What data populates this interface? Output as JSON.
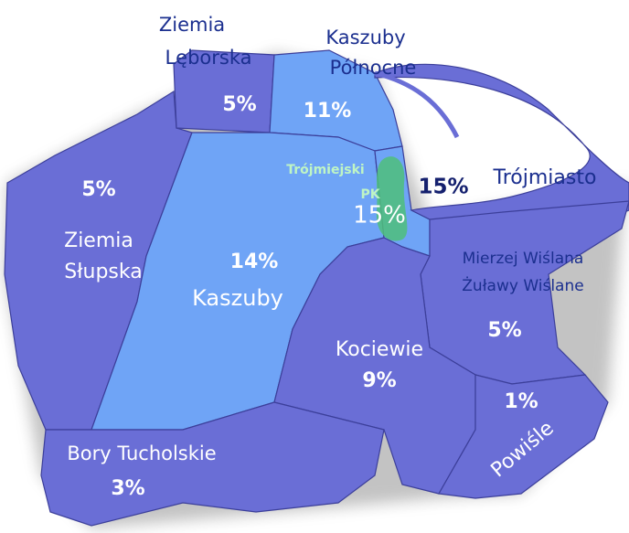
{
  "regions": [
    {
      "name_lines": [
        "Ziemia",
        "Lęborska"
      ],
      "share": "5%"
    },
    {
      "name_lines": [
        "Kaszuby",
        "Północne"
      ],
      "share": "11%"
    },
    {
      "name_lines": [
        "Ziemia",
        "Słupska"
      ],
      "share": "5%"
    },
    {
      "name_lines": [
        "Kaszuby"
      ],
      "share": "14%"
    },
    {
      "name_lines": [
        "Trójmiejski",
        "PK"
      ],
      "share": "15%"
    },
    {
      "name_lines": [
        "Trójmiasto"
      ],
      "share": "15%"
    },
    {
      "name_lines": [
        "Mierzej Wiślana",
        "Żuławy Wiślane"
      ],
      "share": "5%"
    },
    {
      "name_lines": [
        "Kociewie"
      ],
      "share": "9%"
    },
    {
      "name_lines": [
        "Powiśle"
      ],
      "share": "1%"
    },
    {
      "name_lines": [
        "Bory Tucholskie"
      ],
      "share": "3%"
    }
  ]
}
